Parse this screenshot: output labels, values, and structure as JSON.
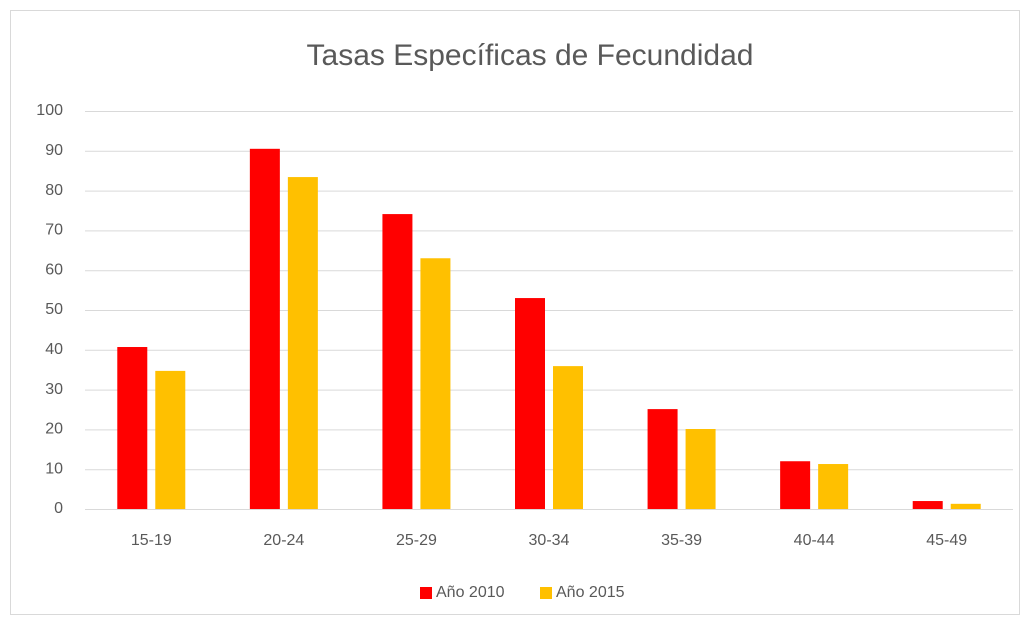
{
  "chart_data": {
    "type": "bar",
    "title": "Tasas Específicas de Fecundidad",
    "categories": [
      "15-19",
      "20-24",
      "25-29",
      "30-34",
      "35-39",
      "40-44",
      "45-49"
    ],
    "series": [
      {
        "name": "Año 2010",
        "color": "#ff0000",
        "values": [
          40.7,
          90.5,
          74.1,
          53,
          25.1,
          12,
          2
        ]
      },
      {
        "name": "Año 2015",
        "color": "#ffc000",
        "values": [
          34.7,
          83.4,
          63,
          35.9,
          20.1,
          11.3,
          1.3
        ]
      }
    ],
    "ylim": [
      0,
      100
    ],
    "yticks": [
      0,
      10,
      20,
      30,
      40,
      50,
      60,
      70,
      80,
      90,
      100
    ],
    "grid": true,
    "legend": "bottom"
  }
}
